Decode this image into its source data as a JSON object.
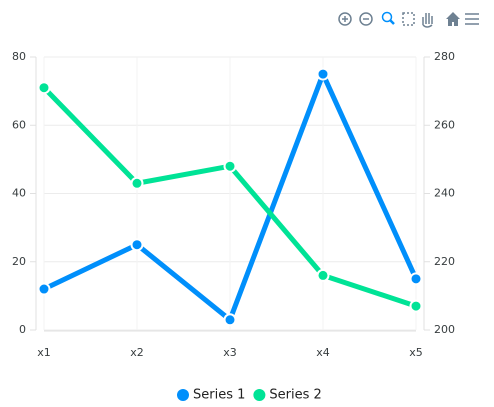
{
  "chart_data": {
    "type": "line",
    "categories": [
      "x1",
      "x2",
      "x3",
      "x4",
      "x5"
    ],
    "series": [
      {
        "name": "Series 1",
        "color": "#008FFB",
        "values": [
          12,
          25,
          3,
          75,
          15
        ]
      },
      {
        "name": "Series 2",
        "color": "#00E396",
        "axis": "y2",
        "values": [
          271,
          243,
          248,
          216,
          207
        ]
      }
    ],
    "ylim": [
      0,
      80
    ],
    "yticks": [
      0,
      20,
      40,
      60,
      80
    ],
    "y2lim": [
      200,
      280
    ],
    "y2ticks": [
      200,
      220,
      240,
      260,
      280
    ],
    "grid": true,
    "legend": "bottom"
  }
}
